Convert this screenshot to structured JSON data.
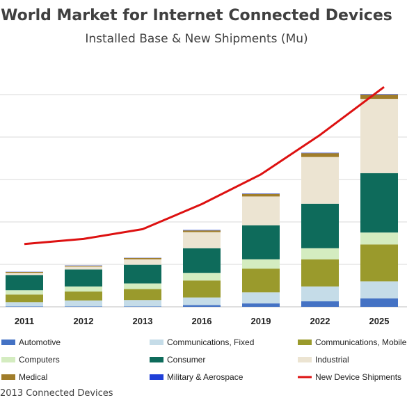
{
  "chart_data": {
    "type": "bar",
    "title": "World Market for Internet Connected Devices",
    "subtitle": "Installed Base & New Shipments (Mu)",
    "categories": [
      "2011",
      "2012",
      "2013",
      "2016",
      "2019",
      "2022",
      "2025"
    ],
    "stacked": true,
    "grid": true,
    "legend_position": "bottom",
    "series": [
      {
        "name": "Automotive",
        "color": "#4472c4",
        "values": [
          1,
          1,
          1,
          4,
          8,
          13,
          20
        ]
      },
      {
        "name": "Communications, Fixed",
        "color": "#c5dce8",
        "values": [
          10,
          14,
          15,
          18,
          26,
          35,
          40
        ]
      },
      {
        "name": "Communications, Mobile",
        "color": "#9a9a2c",
        "values": [
          18,
          21,
          26,
          40,
          56,
          64,
          87
        ]
      },
      {
        "name": "Computers",
        "color": "#d4ecc0",
        "values": [
          10,
          12,
          13,
          18,
          22,
          26,
          28
        ]
      },
      {
        "name": "Consumer",
        "color": "#0e6b5b",
        "values": [
          36,
          40,
          44,
          58,
          80,
          105,
          140
        ]
      },
      {
        "name": "Industrial",
        "color": "#ece4d2",
        "values": [
          5,
          7,
          13,
          38,
          68,
          110,
          175
        ]
      },
      {
        "name": "Medical",
        "color": "#a07d2a",
        "values": [
          2,
          2,
          3,
          4,
          6,
          9,
          10
        ]
      },
      {
        "name": "Military & Aerospace",
        "color": "#1f3fd8",
        "values": [
          0.5,
          0.5,
          0.5,
          1,
          1,
          1,
          1
        ]
      }
    ],
    "line_series": {
      "name": "New Device Shipments",
      "color": "#dd1111",
      "values": [
        148,
        160,
        183,
        242,
        312,
        405,
        518
      ]
    },
    "ylim": [
      0,
      550
    ],
    "gridlines": [
      100,
      200,
      300,
      400,
      500
    ],
    "xlabel": "",
    "ylabel": ""
  },
  "source": "2013 Connected Devices"
}
